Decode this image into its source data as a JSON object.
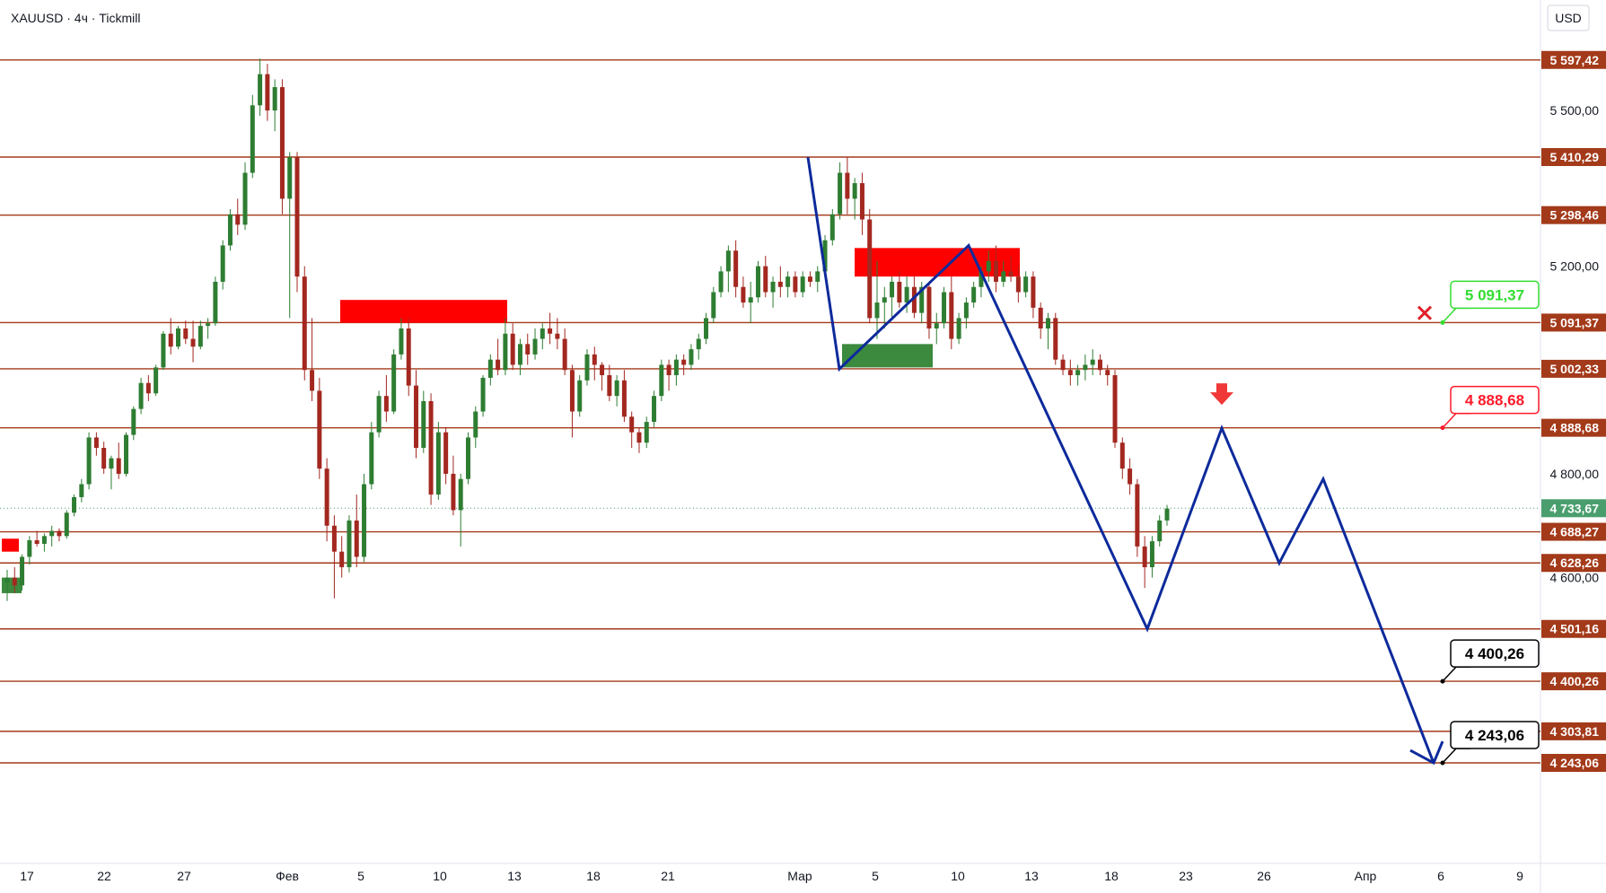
{
  "header": {
    "ticker_label": "XAUUSD · 4ч · Tickmill",
    "currency": "USD"
  },
  "colors": {
    "level_line": "#a33a1a",
    "level_label_bg": "#a33a1a",
    "projection": "#0d2a9c",
    "supply_zone": "#ff0000",
    "demand_zone": "#3b8a3e",
    "bull_candle": "#2e7d32",
    "bear_candle": "#a32820",
    "green_callout": "#33dd33",
    "red_callout": "#ff1a2a",
    "current_price_bg": "#4a9e6e"
  },
  "chart_data": {
    "type": "candlestick",
    "symbol": "XAUUSD",
    "timeframe": "4ч",
    "broker": "Tickmill",
    "ylim": [
      4214,
      5643
    ],
    "y_ticks": [
      "5 500,00",
      "5 200,00",
      "4 800,00",
      "4 600,00"
    ],
    "x_ticks": [
      "17",
      "22",
      "27",
      "Фев",
      "5",
      "10",
      "13",
      "18",
      "21",
      "Мар",
      "5",
      "10",
      "13",
      "18",
      "23",
      "26",
      "Апр",
      "6",
      "9"
    ],
    "levels": [
      {
        "value": 5597.42,
        "label": "5 597,42"
      },
      {
        "value": 5410.29,
        "label": "5 410,29"
      },
      {
        "value": 5298.46,
        "label": "5 298,46"
      },
      {
        "value": 5091.37,
        "label": "5 091,37"
      },
      {
        "value": 5002.33,
        "label": "5 002,33"
      },
      {
        "value": 4888.68,
        "label": "4 888,68"
      },
      {
        "value": 4688.27,
        "label": "4 688,27"
      },
      {
        "value": 4628.26,
        "label": "4 628,26"
      },
      {
        "value": 4501.16,
        "label": "4 501,16"
      },
      {
        "value": 4400.26,
        "label": "4 400,26"
      },
      {
        "value": 4303.81,
        "label": "4 303,81"
      },
      {
        "value": 4243.06,
        "label": "4 243,06"
      }
    ],
    "current_price": {
      "value": 4733.67,
      "label": "4 733,67"
    },
    "callouts": [
      {
        "value": 5091.37,
        "label": "5 091,37",
        "style": "green"
      },
      {
        "value": 4888.68,
        "label": "4 888,68",
        "style": "red"
      },
      {
        "value": 4400.26,
        "label": "4 400,26",
        "style": "black"
      },
      {
        "value": 4243.06,
        "label": "4 243,06",
        "style": "black"
      }
    ],
    "projection_path": [
      {
        "date": "Mar 2",
        "price": 5410
      },
      {
        "date": "Mar 3",
        "price": 5002
      },
      {
        "date": "Mar 10",
        "price": 5240
      },
      {
        "date": "Mar 20",
        "price": 4501
      },
      {
        "date": "Mar 24",
        "price": 4888
      },
      {
        "date": "Mar 27",
        "price": 4628
      },
      {
        "date": "Mar 29",
        "price": 4790
      },
      {
        "date": "Apr 5",
        "price": 4243
      }
    ],
    "zones": [
      {
        "kind": "supply",
        "from": "Feb 4",
        "to": "Feb 12",
        "low": 5091,
        "high": 5135
      },
      {
        "kind": "supply",
        "from": "Mar 4",
        "to": "Mar 12",
        "low": 5180,
        "high": 5235
      },
      {
        "kind": "demand",
        "from": "Mar 3",
        "to": "Mar 8",
        "low": 5005,
        "high": 5050
      },
      {
        "kind": "supply",
        "from": "Jan 16",
        "to": "Jan 17",
        "low": 4650,
        "high": 4675
      },
      {
        "kind": "demand",
        "from": "Jan 16",
        "to": "Jan 17",
        "low": 4570,
        "high": 4600
      }
    ],
    "markers": [
      {
        "kind": "cross",
        "date": "Apr 5",
        "price": 5110
      },
      {
        "kind": "down-arrow",
        "date": "Mar 24",
        "price": 4950
      }
    ],
    "candles": [
      [
        4590,
        4615,
        4555,
        4600
      ],
      [
        4600,
        4620,
        4570,
        4585
      ],
      [
        4585,
        4645,
        4575,
        4640
      ],
      [
        4640,
        4680,
        4625,
        4672
      ],
      [
        4672,
        4690,
        4660,
        4665
      ],
      [
        4665,
        4685,
        4650,
        4680
      ],
      [
        4680,
        4700,
        4660,
        4690
      ],
      [
        4690,
        4695,
        4670,
        4680
      ],
      [
        4680,
        4730,
        4675,
        4725
      ],
      [
        4725,
        4760,
        4718,
        4755
      ],
      [
        4755,
        4790,
        4745,
        4780
      ],
      [
        4780,
        4880,
        4770,
        4870
      ],
      [
        4870,
        4880,
        4835,
        4850
      ],
      [
        4850,
        4862,
        4800,
        4810
      ],
      [
        4810,
        4835,
        4770,
        4830
      ],
      [
        4830,
        4860,
        4790,
        4800
      ],
      [
        4800,
        4880,
        4795,
        4875
      ],
      [
        4875,
        4930,
        4865,
        4925
      ],
      [
        4925,
        4985,
        4915,
        4975
      ],
      [
        4975,
        4990,
        4940,
        4955
      ],
      [
        4955,
        5010,
        4950,
        5005
      ],
      [
        5005,
        5075,
        5000,
        5070
      ],
      [
        5070,
        5100,
        5030,
        5045
      ],
      [
        5045,
        5085,
        5040,
        5080
      ],
      [
        5080,
        5095,
        5050,
        5060
      ],
      [
        5060,
        5095,
        5015,
        5045
      ],
      [
        5045,
        5095,
        5040,
        5085
      ],
      [
        5085,
        5100,
        5060,
        5090
      ],
      [
        5090,
        5180,
        5085,
        5170
      ],
      [
        5170,
        5250,
        5155,
        5240
      ],
      [
        5240,
        5310,
        5230,
        5300
      ],
      [
        5300,
        5330,
        5260,
        5280
      ],
      [
        5280,
        5400,
        5270,
        5380
      ],
      [
        5380,
        5530,
        5370,
        5510
      ],
      [
        5510,
        5600,
        5490,
        5570
      ],
      [
        5570,
        5590,
        5480,
        5500
      ],
      [
        5500,
        5560,
        5460,
        5545
      ],
      [
        5545,
        5560,
        5300,
        5330
      ],
      [
        5330,
        5420,
        5100,
        5410
      ],
      [
        5410,
        5420,
        5150,
        5180
      ],
      [
        5180,
        5200,
        4980,
        5000
      ],
      [
        5000,
        5100,
        4940,
        4960
      ],
      [
        4960,
        4985,
        4790,
        4810
      ],
      [
        4810,
        4830,
        4670,
        4700
      ],
      [
        4700,
        4720,
        4560,
        4650
      ],
      [
        4650,
        4680,
        4600,
        4620
      ],
      [
        4620,
        4720,
        4610,
        4710
      ],
      [
        4710,
        4760,
        4620,
        4640
      ],
      [
        4640,
        4800,
        4630,
        4780
      ],
      [
        4780,
        4900,
        4770,
        4880
      ],
      [
        4880,
        4960,
        4870,
        4950
      ],
      [
        4950,
        4990,
        4900,
        4920
      ],
      [
        4920,
        5040,
        4915,
        5030
      ],
      [
        5030,
        5100,
        5020,
        5080
      ],
      [
        5080,
        5100,
        4950,
        4970
      ],
      [
        4970,
        5000,
        4830,
        4850
      ],
      [
        4850,
        4960,
        4840,
        4940
      ],
      [
        4940,
        4955,
        4740,
        4760
      ],
      [
        4760,
        4900,
        4750,
        4880
      ],
      [
        4880,
        4890,
        4780,
        4800
      ],
      [
        4800,
        4835,
        4720,
        4730
      ],
      [
        4730,
        4800,
        4660,
        4790
      ],
      [
        4790,
        4880,
        4780,
        4870
      ],
      [
        4870,
        4930,
        4850,
        4920
      ],
      [
        4920,
        4990,
        4910,
        4985
      ],
      [
        4985,
        5030,
        4970,
        5020
      ],
      [
        5020,
        5060,
        4990,
        5000
      ],
      [
        5000,
        5100,
        4990,
        5070
      ],
      [
        5070,
        5090,
        5000,
        5010
      ],
      [
        5010,
        5060,
        4990,
        5050
      ],
      [
        5050,
        5070,
        5010,
        5030
      ],
      [
        5030,
        5080,
        5020,
        5060
      ],
      [
        5060,
        5090,
        5040,
        5080
      ],
      [
        5080,
        5110,
        5050,
        5070
      ],
      [
        5070,
        5100,
        5040,
        5060
      ],
      [
        5060,
        5080,
        4990,
        5000
      ],
      [
        5000,
        5010,
        4870,
        4920
      ],
      [
        4920,
        4990,
        4910,
        4980
      ],
      [
        4980,
        5040,
        4970,
        5030
      ],
      [
        5030,
        5045,
        4980,
        5010
      ],
      [
        5010,
        5015,
        4960,
        4990
      ],
      [
        4990,
        5010,
        4940,
        4950
      ],
      [
        4950,
        4990,
        4930,
        4980
      ],
      [
        4980,
        5000,
        4900,
        4910
      ],
      [
        4910,
        4920,
        4850,
        4880
      ],
      [
        4880,
        4890,
        4840,
        4860
      ],
      [
        4860,
        4910,
        4850,
        4900
      ],
      [
        4900,
        4960,
        4890,
        4950
      ],
      [
        4950,
        5020,
        4940,
        5010
      ],
      [
        5010,
        5020,
        4960,
        4990
      ],
      [
        4990,
        5030,
        4970,
        5020
      ],
      [
        5020,
        5030,
        4990,
        5010
      ],
      [
        5010,
        5050,
        5000,
        5040
      ],
      [
        5040,
        5070,
        5020,
        5060
      ],
      [
        5060,
        5110,
        5050,
        5100
      ],
      [
        5100,
        5160,
        5090,
        5150
      ],
      [
        5150,
        5200,
        5140,
        5190
      ],
      [
        5190,
        5240,
        5150,
        5230
      ],
      [
        5230,
        5250,
        5140,
        5160
      ],
      [
        5160,
        5180,
        5120,
        5130
      ],
      [
        5130,
        5170,
        5090,
        5140
      ],
      [
        5140,
        5210,
        5130,
        5200
      ],
      [
        5200,
        5220,
        5140,
        5150
      ],
      [
        5150,
        5180,
        5120,
        5170
      ],
      [
        5170,
        5200,
        5140,
        5160
      ],
      [
        5160,
        5190,
        5140,
        5180
      ],
      [
        5180,
        5190,
        5140,
        5150
      ],
      [
        5150,
        5190,
        5140,
        5180
      ],
      [
        5180,
        5190,
        5160,
        5170
      ],
      [
        5170,
        5200,
        5150,
        5190
      ],
      [
        5190,
        5260,
        5180,
        5250
      ],
      [
        5250,
        5310,
        5240,
        5300
      ],
      [
        5300,
        5400,
        5290,
        5380
      ],
      [
        5380,
        5410,
        5300,
        5330
      ],
      [
        5330,
        5370,
        5290,
        5360
      ],
      [
        5360,
        5380,
        5260,
        5290
      ],
      [
        5290,
        5310,
        5090,
        5100
      ],
      [
        5100,
        5210,
        5060,
        5130
      ],
      [
        5130,
        5160,
        5080,
        5140
      ],
      [
        5140,
        5180,
        5100,
        5170
      ],
      [
        5170,
        5190,
        5120,
        5130
      ],
      [
        5130,
        5180,
        5110,
        5160
      ],
      [
        5160,
        5180,
        5100,
        5110
      ],
      [
        5110,
        5170,
        5090,
        5160
      ],
      [
        5160,
        5170,
        5060,
        5080
      ],
      [
        5080,
        5110,
        5050,
        5090
      ],
      [
        5090,
        5160,
        5080,
        5150
      ],
      [
        5150,
        5180,
        5040,
        5060
      ],
      [
        5060,
        5110,
        5050,
        5100
      ],
      [
        5100,
        5140,
        5080,
        5130
      ],
      [
        5130,
        5170,
        5120,
        5160
      ],
      [
        5160,
        5200,
        5140,
        5190
      ],
      [
        5190,
        5230,
        5170,
        5210
      ],
      [
        5210,
        5240,
        5150,
        5170
      ],
      [
        5170,
        5210,
        5160,
        5190
      ],
      [
        5190,
        5220,
        5170,
        5180
      ],
      [
        5180,
        5200,
        5130,
        5150
      ],
      [
        5150,
        5190,
        5140,
        5180
      ],
      [
        5180,
        5190,
        5100,
        5120
      ],
      [
        5120,
        5130,
        5060,
        5080
      ],
      [
        5080,
        5110,
        5040,
        5100
      ],
      [
        5100,
        5110,
        5010,
        5020
      ],
      [
        5020,
        5030,
        4990,
        5000
      ],
      [
        5000,
        5020,
        4970,
        4990
      ],
      [
        4990,
        5010,
        4970,
        5000
      ],
      [
        5000,
        5030,
        4980,
        5010
      ],
      [
        5010,
        5040,
        4990,
        5020
      ],
      [
        5020,
        5030,
        4990,
        5000
      ],
      [
        5000,
        5010,
        4970,
        4990
      ],
      [
        4990,
        5000,
        4850,
        4860
      ],
      [
        4860,
        4870,
        4790,
        4810
      ],
      [
        4810,
        4830,
        4760,
        4780
      ],
      [
        4780,
        4790,
        4640,
        4660
      ],
      [
        4660,
        4680,
        4580,
        4620
      ],
      [
        4620,
        4680,
        4600,
        4670
      ],
      [
        4670,
        4720,
        4660,
        4710
      ],
      [
        4710,
        4740,
        4700,
        4733
      ]
    ]
  }
}
